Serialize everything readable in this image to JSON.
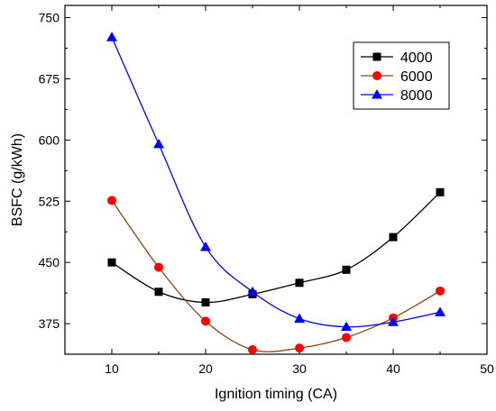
{
  "chart_data": {
    "type": "line",
    "title": "",
    "xlabel": "Ignition timing (CA)",
    "ylabel": "BSFC (g/kWh)",
    "xlim": [
      5,
      50
    ],
    "ylim": [
      337.5,
      765
    ],
    "x_ticks": [
      10,
      20,
      30,
      40,
      50
    ],
    "x_tick_labels": [
      "10",
      "20",
      "30",
      "40",
      "50"
    ],
    "y_ticks": [
      375,
      450,
      525,
      600,
      675,
      750
    ],
    "y_tick_labels": [
      "375",
      "450",
      "525",
      "600",
      "675",
      "750"
    ],
    "grid": false,
    "legend_position": "top-right",
    "x": [
      10,
      15,
      20,
      25,
      30,
      35,
      40,
      45
    ],
    "series": [
      {
        "name": "4000",
        "values": [
          450,
          414,
          401,
          411,
          425,
          441,
          481,
          536
        ],
        "color": "#000000",
        "marker": "square"
      },
      {
        "name": "6000",
        "values": [
          526,
          444,
          378,
          343,
          345,
          358,
          382,
          415
        ],
        "color": "#ff0000",
        "line_color": "#8b4513",
        "marker": "circle"
      },
      {
        "name": "8000",
        "values": [
          726,
          595,
          469,
          414,
          381,
          371,
          377,
          389
        ],
        "color": "#0000ff",
        "marker": "triangle"
      }
    ]
  }
}
